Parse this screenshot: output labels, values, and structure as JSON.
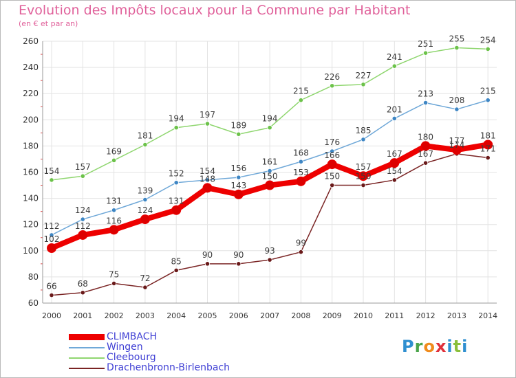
{
  "header": {
    "title": "Evolution des Impôts locaux pour la Commune par Habitant",
    "subtitle": "(en € et par an)"
  },
  "logo": {
    "text": "Proxiti"
  },
  "colors": {
    "title": "#e0609a",
    "axis_text": "#333333",
    "legend_text": "#3f3fd4",
    "grid": "#e3e3e3"
  },
  "chart_data": {
    "type": "line",
    "title": "Evolution des Impôts locaux pour la Commune par Habitant",
    "subtitle": "(en € et par an)",
    "xlabel": "",
    "ylabel": "",
    "ylim": [
      60,
      260
    ],
    "yticks": [
      60,
      80,
      100,
      120,
      140,
      160,
      180,
      200,
      220,
      240,
      260
    ],
    "grid": true,
    "legend_position": "bottom-left",
    "x": [
      "2000",
      "2001",
      "2002",
      "2003",
      "2004",
      "2005",
      "2006",
      "2007",
      "2008",
      "2009",
      "2010",
      "2011",
      "2012",
      "2013",
      "2014"
    ],
    "series": [
      {
        "name": "Cleebourg",
        "color": "#8fd66f",
        "marker": "#6cc24a",
        "values": [
          154,
          157,
          169,
          181,
          194,
          197,
          189,
          194,
          215,
          226,
          227,
          241,
          251,
          255,
          254
        ]
      },
      {
        "name": "Wingen",
        "color": "#6fa8d8",
        "marker": "#3e86c4",
        "values": [
          112,
          124,
          131,
          139,
          152,
          154,
          156,
          161,
          168,
          176,
          185,
          201,
          213,
          208,
          215
        ]
      },
      {
        "name": "Drachenbronn-Birlenbach",
        "color": "#7a2424",
        "marker": "#6a1a1a",
        "values": [
          66,
          68,
          75,
          72,
          85,
          90,
          90,
          93,
          99,
          150,
          150,
          154,
          167,
          174,
          171
        ]
      },
      {
        "name": "CLIMBACH",
        "color": "#ee0000",
        "marker": "#dd0000",
        "thick": true,
        "values": [
          102,
          112,
          116,
          124,
          131,
          148,
          143,
          150,
          153,
          166,
          157,
          167,
          180,
          177,
          181
        ]
      }
    ],
    "legend_order": [
      "CLIMBACH",
      "Wingen",
      "Cleebourg",
      "Drachenbronn-Birlenbach"
    ]
  }
}
